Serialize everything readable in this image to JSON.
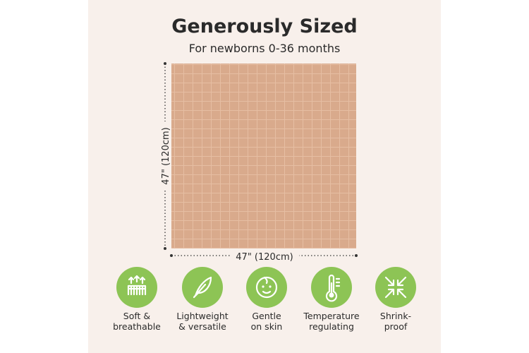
{
  "header": {
    "title": "Generously Sized",
    "subtitle": "For newborns 0-36 months"
  },
  "dimensions": {
    "height": "47\" (120cm)",
    "width": "47\" (120cm)"
  },
  "features": [
    {
      "icon": "breathable",
      "lines": [
        "Soft &",
        "breathable"
      ]
    },
    {
      "icon": "feather",
      "lines": [
        "Lightweight",
        "& versatile"
      ]
    },
    {
      "icon": "baby",
      "lines": [
        "Gentle",
        "on skin"
      ]
    },
    {
      "icon": "thermometer",
      "lines": [
        "Temperature",
        "regulating"
      ]
    },
    {
      "icon": "shrink",
      "lines": [
        "Shrink-",
        "proof"
      ]
    }
  ]
}
